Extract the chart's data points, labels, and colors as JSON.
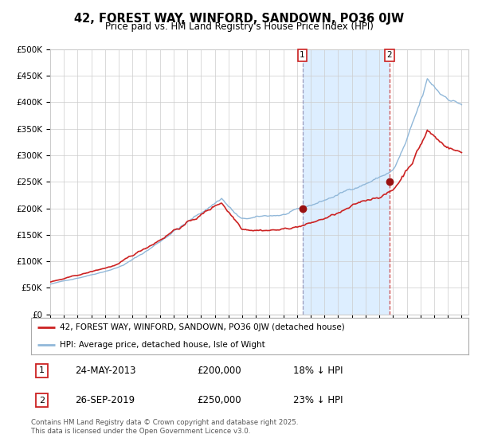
{
  "title": "42, FOREST WAY, WINFORD, SANDOWN, PO36 0JW",
  "subtitle": "Price paid vs. HM Land Registry's House Price Index (HPI)",
  "title_fontsize": 10.5,
  "subtitle_fontsize": 8.5,
  "hpi_color": "#91b8d9",
  "price_color": "#cc2222",
  "marker_color": "#991111",
  "background_color": "#ffffff",
  "plot_bg_color": "#ffffff",
  "shaded_bg_color": "#ddeeff",
  "grid_color": "#cccccc",
  "ylim": [
    0,
    500000
  ],
  "yticks": [
    0,
    50000,
    100000,
    150000,
    200000,
    250000,
    300000,
    350000,
    400000,
    450000,
    500000
  ],
  "year_start": 1995,
  "year_end": 2025,
  "sale1_date": "24-MAY-2013",
  "sale1_year": 2013.39,
  "sale1_price": 200000,
  "sale1_label": "1",
  "sale1_pct": "18% ↓ HPI",
  "sale2_date": "26-SEP-2019",
  "sale2_year": 2019.73,
  "sale2_price": 250000,
  "sale2_label": "2",
  "sale2_pct": "23% ↓ HPI",
  "legend_line1": "42, FOREST WAY, WINFORD, SANDOWN, PO36 0JW (detached house)",
  "legend_line2": "HPI: Average price, detached house, Isle of Wight",
  "footer_line1": "Contains HM Land Registry data © Crown copyright and database right 2025.",
  "footer_line2": "This data is licensed under the Open Government Licence v3.0."
}
